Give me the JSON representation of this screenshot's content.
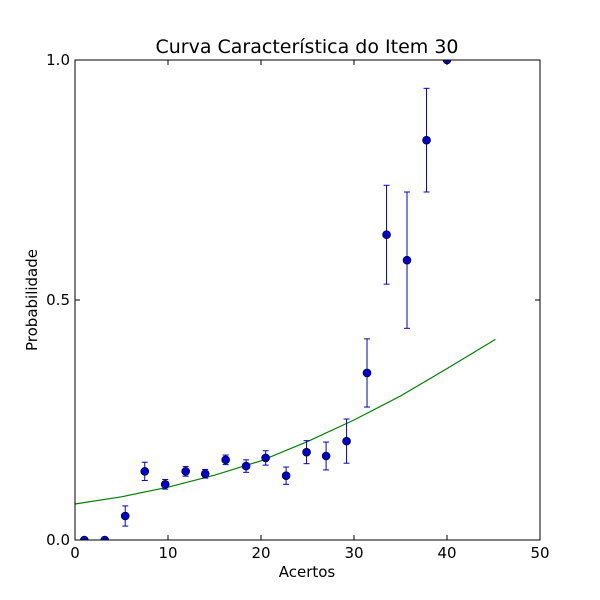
{
  "chart_data": {
    "type": "scatter",
    "title": "Curva Característica do Item 30",
    "xlabel": "Acertos",
    "ylabel": "Probabilidade",
    "xlim": [
      0,
      50
    ],
    "ylim": [
      0,
      1
    ],
    "x_ticks": [
      0,
      10,
      20,
      30,
      40,
      50
    ],
    "x_tick_labels": [
      "0",
      "10",
      "20",
      "30",
      "40",
      "50"
    ],
    "y_ticks": [
      0,
      0.5,
      1
    ],
    "y_tick_labels": [
      "0.0",
      "0.5",
      "1.0"
    ],
    "grid": false,
    "series": [
      {
        "kind": "points_with_error",
        "color": "#0000cc",
        "points": [
          {
            "x": 1.0,
            "y": 0.0,
            "err": 0.0
          },
          {
            "x": 3.2,
            "y": 0.0,
            "err": 0.0
          },
          {
            "x": 5.4,
            "y": 0.05,
            "err": 0.021
          },
          {
            "x": 7.5,
            "y": 0.143,
            "err": 0.019
          },
          {
            "x": 9.7,
            "y": 0.116,
            "err": 0.01
          },
          {
            "x": 11.9,
            "y": 0.143,
            "err": 0.01
          },
          {
            "x": 14.0,
            "y": 0.138,
            "err": 0.009
          },
          {
            "x": 16.2,
            "y": 0.167,
            "err": 0.01
          },
          {
            "x": 18.4,
            "y": 0.154,
            "err": 0.013
          },
          {
            "x": 20.5,
            "y": 0.171,
            "err": 0.015
          },
          {
            "x": 22.7,
            "y": 0.134,
            "err": 0.018
          },
          {
            "x": 24.9,
            "y": 0.183,
            "err": 0.024
          },
          {
            "x": 27.0,
            "y": 0.175,
            "err": 0.029
          },
          {
            "x": 29.2,
            "y": 0.206,
            "err": 0.046
          },
          {
            "x": 31.4,
            "y": 0.348,
            "err": 0.071
          },
          {
            "x": 33.5,
            "y": 0.636,
            "err": 0.103
          },
          {
            "x": 35.7,
            "y": 0.583,
            "err": 0.142
          },
          {
            "x": 37.8,
            "y": 0.833,
            "err": 0.108
          },
          {
            "x": 40.0,
            "y": 1.0,
            "err": 0.0
          }
        ]
      },
      {
        "kind": "curve",
        "color": "#008000",
        "x": [
          0,
          5,
          10,
          15,
          20,
          25,
          30,
          35,
          40,
          45.2
        ],
        "y": [
          0.075,
          0.09,
          0.11,
          0.135,
          0.165,
          0.205,
          0.25,
          0.3,
          0.357,
          0.418
        ]
      }
    ]
  }
}
